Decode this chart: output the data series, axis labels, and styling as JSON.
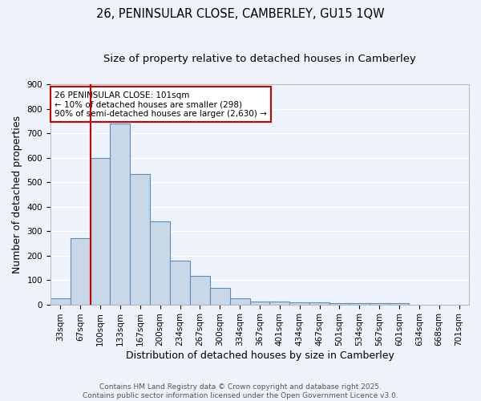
{
  "title": "26, PENINSULAR CLOSE, CAMBERLEY, GU15 1QW",
  "subtitle": "Size of property relative to detached houses in Camberley",
  "xlabel": "Distribution of detached houses by size in Camberley",
  "ylabel": "Number of detached properties",
  "categories": [
    "33sqm",
    "67sqm",
    "100sqm",
    "133sqm",
    "167sqm",
    "200sqm",
    "234sqm",
    "267sqm",
    "300sqm",
    "334sqm",
    "367sqm",
    "401sqm",
    "434sqm",
    "467sqm",
    "501sqm",
    "534sqm",
    "567sqm",
    "601sqm",
    "634sqm",
    "668sqm",
    "701sqm"
  ],
  "values": [
    25,
    270,
    600,
    740,
    535,
    340,
    178,
    118,
    67,
    25,
    13,
    13,
    10,
    8,
    5,
    5,
    5,
    5,
    0,
    0,
    0
  ],
  "bar_color": "#c8d8e8",
  "bar_edge_color": "#5b8db8",
  "background_color": "#eef2fb",
  "grid_color": "#ffffff",
  "vline_x_index": 2,
  "vline_color": "#cc0000",
  "ylim": [
    0,
    900
  ],
  "yticks": [
    0,
    100,
    200,
    300,
    400,
    500,
    600,
    700,
    800,
    900
  ],
  "annotation_title": "26 PENINSULAR CLOSE: 101sqm",
  "annotation_line1": "← 10% of detached houses are smaller (298)",
  "annotation_line2": "90% of semi-detached houses are larger (2,630) →",
  "annotation_box_color": "#ffffff",
  "annotation_edge_color": "#cc0000",
  "footer_line1": "Contains HM Land Registry data © Crown copyright and database right 2025.",
  "footer_line2": "Contains public sector information licensed under the Open Government Licence v3.0.",
  "title_fontsize": 10.5,
  "subtitle_fontsize": 9.5,
  "axis_label_fontsize": 9,
  "tick_fontsize": 7.5,
  "annotation_fontsize": 7.5,
  "footer_fontsize": 6.5
}
